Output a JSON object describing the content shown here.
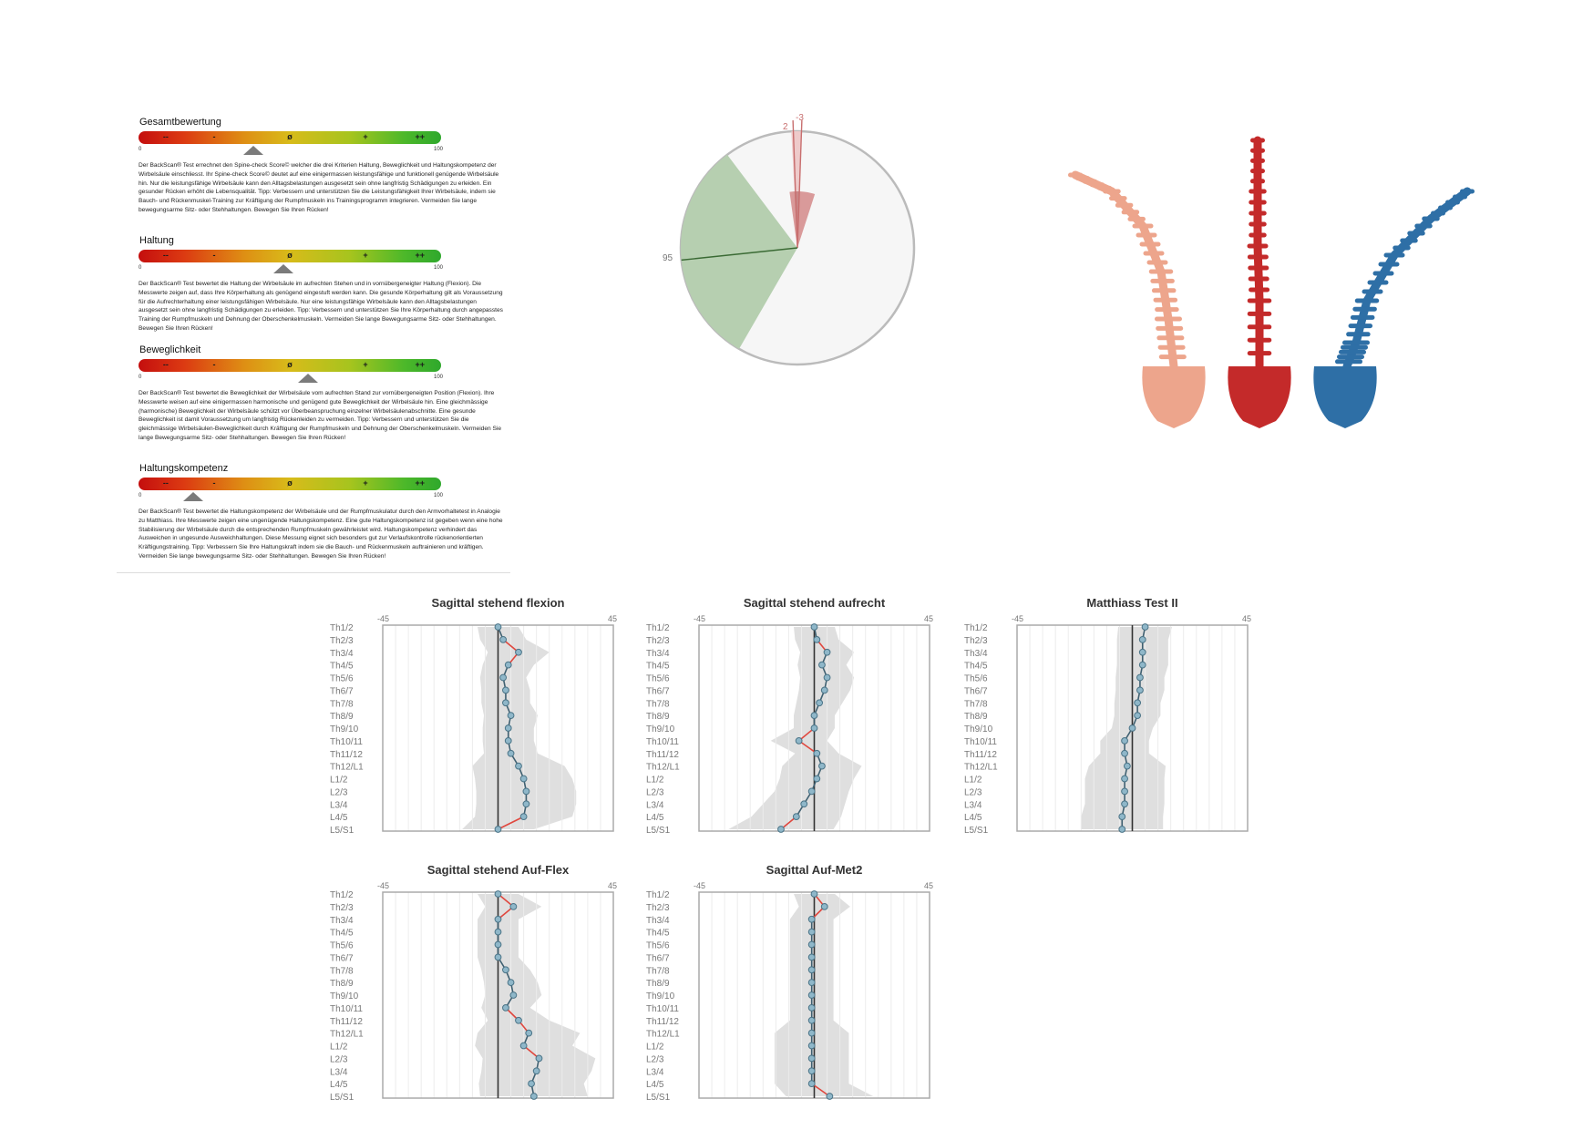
{
  "sections": [
    {
      "title": "Gesamtbewertung",
      "marker": 38,
      "text": "Der BackScan® Test errechnet den Spine-check Score© welcher die drei Kriterien Haltung, Beweglichkeit und Haltungskompetenz der Wirbelsäule einschliesst. Ihr Spine-check Score© deutet auf eine einigermassen leistungsfähige und funktionell genügende Wirbelsäule hin. Nur die leistungsfähige Wirbelsäule kann den Alltagsbelastungen ausgesetzt sein ohne langfristig Schädigungen zu erleiden. Ein gesunder Rücken erhöht die Lebensqualität. Tipp: Verbessern und unterstützen Sie die Leistungsfähigkeit Ihrer Wirbelsäule, indem sie Bauch- und Rückenmuskel-Training zur Kräftigung der Rumpfmuskeln ins Trainingsprogramm integrieren. Vermeiden Sie lange bewegungsarme Sitz- oder Stehhaltungen. Bewegen Sie Ihren Rücken!"
    },
    {
      "title": "Haltung",
      "marker": 48,
      "text": "Der BackScan® Test bewertet die Haltung der Wirbelsäule im aufrechten Stehen und in vornübergeneigter Haltung (Flexion). Die Messwerte zeigen auf, dass Ihre Körperhaltung als genügend eingestuft werden kann. Die gesunde Körperhaltung gilt als Voraussetzung für die Aufrechterhaltung einer leistungsfähigen Wirbelsäule. Nur eine leistungsfähige Wirbelsäule kann den Alltagsbelastungen ausgesetzt sein ohne langfristig Schädigungen zu erleiden. Tipp: Verbessern und unterstützen Sie Ihre Körperhaltung durch angepasstes Training der Rumpfmuskeln und Dehnung der Oberschenkelmuskeln. Vermeiden Sie lange Bewegungsarme Sitz- oder Stehhaltungen. Bewegen Sie Ihren Rücken!"
    },
    {
      "title": "Beweglichkeit",
      "marker": 56,
      "text": "Der BackScan® Test bewertet die Beweglichkeit der Wirbelsäule vom aufrechten Stand zur vornübergeneigten Position (Flexion). Ihre Messwerte weisen auf eine einigermassen harmonische und genügend gute Beweglichkeit der Wirbelsäule hin. Eine gleichmässige (harmonische) Beweglichkeit der Wirbelsäule schützt vor Überbeanspruchung einzelner Wirbelsäulenabschnitte. Eine gesunde Beweglichkeit ist damit Voraussetzung um langfristig Rückenleiden zu vermeiden. Tipp: Verbessern und unterstützen Sie die gleichmässige Wirbelsäulen-Beweglichkeit durch Kräftigung der Rumpfmuskeln und Dehnung der Oberschenkelmuskeln. Vermeiden Sie lange Bewegungsarme Sitz- oder Stehhaltungen. Bewegen Sie Ihren Rücken!"
    },
    {
      "title": "Haltungskompetenz",
      "marker": 18,
      "text": "Der BackScan® Test bewertet die Haltungskompetenz der Wirbelsäule und der Rumpfmuskulatur durch den Armvorhaltetest in Analogie zu Matthiass. Ihre Messwerte zeigen eine ungenügende Haltungskompetenz. Eine gute Haltungskompetenz ist gegeben wenn eine hohe Stabilisierung der Wirbelsäule durch die entsprechenden Rumpfmuskeln gewährleistet wird. Haltungskompetenz verhindert das Ausweichen in ungesunde Ausweichhaltungen. Diese Messung eignet sich besonders gut zur Verlaufskontrolle rückenorientierten Kräftigungstraining. Tipp: Verbessern Sie Ihre Haltungskraft indem sie die Bauch- und Rückenmuskeln auftrainieren und kräftigen. Vermeiden Sie lange bewegungsarme Sitz- oder Stehhaltungen. Bewegen Sie Ihren Rücken!"
    }
  ],
  "bar_labels": [
    "--",
    "-",
    "ø",
    "+",
    "++"
  ],
  "scale": {
    "min": "0",
    "max": "100"
  },
  "pie": {
    "labels": [
      "-3",
      "2",
      "95"
    ],
    "colors": {
      "green": "#b6cfb0",
      "red": "#d99a9a",
      "bg": "#f6f6f6"
    }
  },
  "spine_colors": [
    "#eda58c",
    "#c42a2a",
    "#2e6fa6"
  ],
  "vertebrae": [
    "Th1/2",
    "Th2/3",
    "Th3/4",
    "Th4/5",
    "Th5/6",
    "Th6/7",
    "Th7/8",
    "Th8/9",
    "Th9/10",
    "Th10/11",
    "Th11/12",
    "Th12/L1",
    "L1/2",
    "L2/3",
    "L3/4",
    "L4/5",
    "L5/S1"
  ],
  "chart_data": [
    {
      "type": "line",
      "title": "Sagittal stehend flexion",
      "xlim": [
        -45,
        45
      ],
      "xticks": [
        "-45",
        "45"
      ],
      "values": [
        0,
        2,
        8,
        4,
        2,
        3,
        3,
        5,
        4,
        4,
        5,
        8,
        10,
        11,
        11,
        10,
        0
      ]
    },
    {
      "type": "line",
      "title": "Sagittal stehend aufrecht",
      "xlim": [
        -45,
        45
      ],
      "xticks": [
        "-45",
        "45"
      ],
      "values": [
        0,
        1,
        5,
        3,
        5,
        4,
        2,
        0,
        0,
        -6,
        1,
        3,
        1,
        -1,
        -4,
        -7,
        -13
      ]
    },
    {
      "type": "line",
      "title": "Matthiass Test II",
      "xlim": [
        -45,
        45
      ],
      "xticks": [
        "-45",
        "45"
      ],
      "values": [
        5,
        4,
        4,
        4,
        3,
        3,
        2,
        2,
        0,
        -3,
        -3,
        -2,
        -3,
        -3,
        -3,
        -4,
        -4
      ]
    },
    {
      "type": "line",
      "title": "Sagittal stehend Auf-Flex",
      "xlim": [
        -45,
        45
      ],
      "xticks": [
        "-45",
        "45"
      ],
      "values": [
        0,
        6,
        0,
        0,
        0,
        0,
        3,
        5,
        6,
        3,
        8,
        12,
        10,
        16,
        15,
        13,
        14
      ]
    },
    {
      "type": "line",
      "title": "Sagittal Auf-Met2",
      "xlim": [
        -45,
        45
      ],
      "xticks": [
        "-45",
        "45"
      ],
      "values": [
        0,
        4,
        -1,
        -1,
        -1,
        -1,
        -1,
        -1,
        -1,
        -1,
        -1,
        -1,
        -1,
        -1,
        -1,
        -1,
        6
      ]
    }
  ]
}
